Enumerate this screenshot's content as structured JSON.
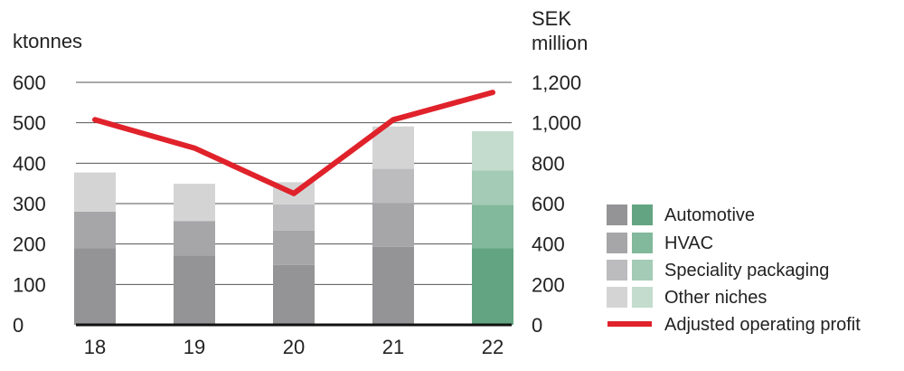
{
  "chart_data": {
    "type": "bar",
    "categories": [
      "18",
      "19",
      "20",
      "21",
      "22"
    ],
    "y_left": {
      "unit_label": "ktonnes",
      "ticks": [
        0,
        100,
        200,
        300,
        400,
        500,
        600
      ],
      "ylim": [
        0,
        600
      ]
    },
    "y_right": {
      "unit_label_lines": [
        "SEK",
        "million"
      ],
      "ticks": [
        "0",
        "200",
        "400",
        "600",
        "800",
        "1,000",
        "1,200"
      ],
      "ylim": [
        0,
        1200
      ]
    },
    "series": [
      {
        "name": "Automotive",
        "values": [
          190,
          172,
          148,
          193,
          190
        ]
      },
      {
        "name": "HVAC",
        "values": [
          90,
          85,
          85,
          108,
          107
        ]
      },
      {
        "name": "Speciality packaging",
        "values": [
          0,
          0,
          65,
          85,
          85
        ]
      },
      {
        "name": "Other niches",
        "values": [
          97,
          92,
          55,
          105,
          97
        ]
      }
    ],
    "line_series": {
      "name": "Adjusted operating profit",
      "axis": "right",
      "values": [
        1015,
        875,
        650,
        1015,
        1150
      ]
    },
    "grid": true,
    "legend_position": "right"
  },
  "colors": {
    "grey_shades": [
      "#949496",
      "#a6a6a8",
      "#bcbcbe",
      "#d4d4d5"
    ],
    "green_shades": [
      "#63a582",
      "#82b89b",
      "#a3cbb5",
      "#c3dccd"
    ],
    "line": "#e0222b",
    "grid": "#555555",
    "baseline": "#111111"
  }
}
